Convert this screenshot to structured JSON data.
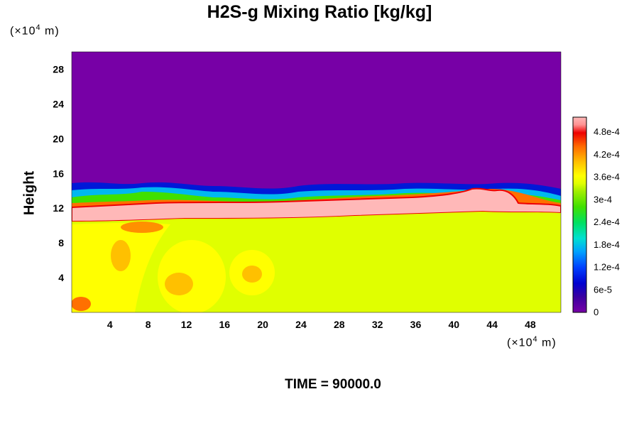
{
  "chart_data": {
    "type": "heatmap",
    "title": "H2S-g Mixing Ratio [kg/kg]",
    "xlabel": "",
    "ylabel": "Height",
    "x_unit_prefix": "(×10",
    "x_unit_exp": "4",
    "x_unit_suffix": " m)",
    "y_unit_prefix": "(×10",
    "y_unit_exp": "4",
    "y_unit_suffix": " m)",
    "xlim": [
      0,
      51.2
    ],
    "ylim": [
      0,
      30
    ],
    "x_ticks": [
      "4",
      "8",
      "12",
      "16",
      "20",
      "24",
      "28",
      "32",
      "36",
      "40",
      "44",
      "48"
    ],
    "y_ticks": [
      "4",
      "8",
      "12",
      "16",
      "20",
      "24",
      "28"
    ],
    "colorbar": {
      "range": [
        0,
        0.00052
      ],
      "tick_labels": [
        "0",
        "6e-5",
        "1.2e-4",
        "1.8e-4",
        "2.4e-4",
        "3e-4",
        "3.6e-4",
        "4.2e-4",
        "4.8e-4"
      ],
      "tick_values": [
        0,
        6e-05,
        0.00012,
        0.00018,
        0.00024,
        0.0003,
        0.00036,
        0.00042,
        0.00048
      ]
    },
    "regions": [
      {
        "name": "upper",
        "y_range": [
          14,
          30
        ],
        "value": 0
      },
      {
        "name": "lower",
        "y_range": [
          0,
          11
        ],
        "value": 0.00033
      },
      {
        "name": "layer-max",
        "y_range": [
          11,
          13
        ],
        "value": 0.0005
      }
    ],
    "footer": "TIME = 90000.0"
  }
}
